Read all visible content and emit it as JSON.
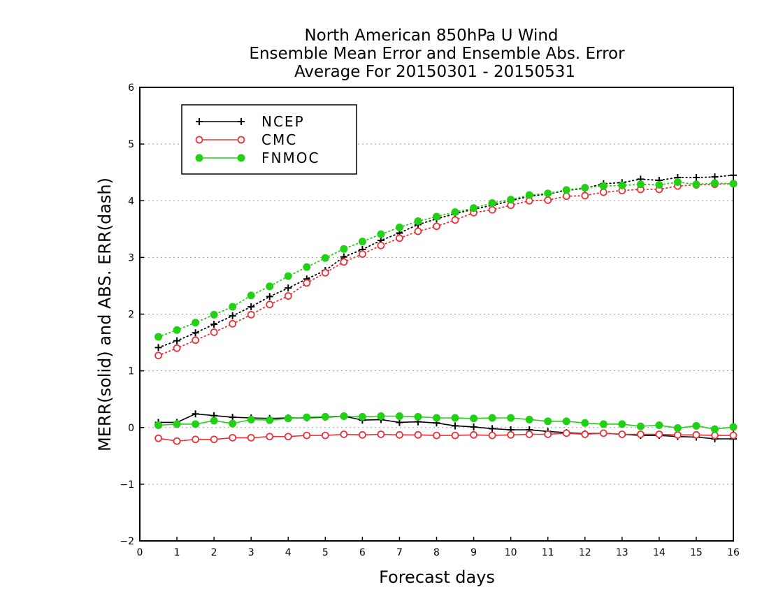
{
  "chart_data": {
    "type": "line",
    "title": [
      "North American 850hPa U Wind",
      "Ensemble Mean Error and Ensemble Abs. Error",
      "Average For 20150301 - 20150531"
    ],
    "xlabel": "Forecast days",
    "ylabel": "MERR(solid) and ABS. ERR(dash)",
    "xlim": [
      0,
      16
    ],
    "ylim": [
      -2,
      6
    ],
    "xticks": [
      0,
      1,
      2,
      3,
      4,
      5,
      6,
      7,
      8,
      9,
      10,
      11,
      12,
      13,
      14,
      15,
      16
    ],
    "yticks": [
      -2,
      -1,
      0,
      1,
      2,
      3,
      4,
      5,
      6
    ],
    "xtick_labels": [
      "0",
      "1",
      "2",
      "3",
      "4",
      "5",
      "6",
      "7",
      "8",
      "9",
      "10",
      "11",
      "12",
      "13",
      "14",
      "15",
      "16"
    ],
    "ytick_labels": [
      "−2",
      "−1",
      "0",
      "1",
      "2",
      "3",
      "4",
      "5",
      "6"
    ],
    "grid": "horizontal dotted",
    "legend_position": "top-left",
    "x": [
      0.5,
      1,
      1.5,
      2,
      2.5,
      3,
      3.5,
      4,
      4.5,
      5,
      5.5,
      6,
      6.5,
      7,
      7.5,
      8,
      8.5,
      9,
      9.5,
      10,
      10.5,
      11,
      11.5,
      12,
      12.5,
      13,
      13.5,
      14,
      14.5,
      15,
      15.5,
      16
    ],
    "series": [
      {
        "name": "NCEP",
        "color": "#000000",
        "marker": "plus",
        "merr": [
          0.09,
          0.09,
          0.24,
          0.21,
          0.18,
          0.17,
          0.16,
          0.17,
          0.17,
          0.18,
          0.2,
          0.13,
          0.14,
          0.09,
          0.1,
          0.08,
          0.03,
          0.01,
          -0.02,
          -0.04,
          -0.04,
          -0.07,
          -0.09,
          -0.11,
          -0.1,
          -0.12,
          -0.14,
          -0.14,
          -0.16,
          -0.17,
          -0.2,
          -0.2
        ],
        "abs_err": [
          1.41,
          1.53,
          1.67,
          1.82,
          1.97,
          2.13,
          2.31,
          2.46,
          2.62,
          2.77,
          3.01,
          3.14,
          3.3,
          3.43,
          3.58,
          3.68,
          3.77,
          3.85,
          3.92,
          4.0,
          4.08,
          4.12,
          4.18,
          4.22,
          4.3,
          4.32,
          4.38,
          4.36,
          4.41,
          4.41,
          4.42,
          4.45
        ]
      },
      {
        "name": "CMC",
        "color": "#e8333a",
        "marker": "open-circle",
        "merr": [
          -0.19,
          -0.24,
          -0.21,
          -0.21,
          -0.18,
          -0.18,
          -0.16,
          -0.16,
          -0.14,
          -0.14,
          -0.12,
          -0.13,
          -0.12,
          -0.13,
          -0.13,
          -0.14,
          -0.14,
          -0.13,
          -0.14,
          -0.13,
          -0.12,
          -0.12,
          -0.1,
          -0.12,
          -0.1,
          -0.12,
          -0.12,
          -0.12,
          -0.13,
          -0.13,
          -0.14,
          -0.14
        ],
        "abs_err": [
          1.27,
          1.4,
          1.54,
          1.68,
          1.83,
          1.99,
          2.17,
          2.32,
          2.55,
          2.73,
          2.92,
          3.06,
          3.21,
          3.34,
          3.46,
          3.55,
          3.66,
          3.79,
          3.84,
          3.92,
          4.0,
          4.01,
          4.08,
          4.09,
          4.15,
          4.18,
          4.2,
          4.2,
          4.26,
          4.28,
          4.29,
          4.3
        ]
      },
      {
        "name": "FNMOC",
        "color": "#22d016",
        "marker": "filled-circle",
        "merr": [
          0.04,
          0.06,
          0.06,
          0.12,
          0.07,
          0.14,
          0.13,
          0.16,
          0.18,
          0.19,
          0.2,
          0.19,
          0.2,
          0.2,
          0.19,
          0.17,
          0.17,
          0.16,
          0.17,
          0.17,
          0.14,
          0.11,
          0.11,
          0.08,
          0.06,
          0.06,
          0.02,
          0.04,
          -0.01,
          0.03,
          -0.03,
          0.01
        ],
        "abs_err": [
          1.6,
          1.72,
          1.85,
          1.99,
          2.13,
          2.33,
          2.49,
          2.67,
          2.83,
          2.99,
          3.15,
          3.28,
          3.41,
          3.53,
          3.64,
          3.72,
          3.8,
          3.87,
          3.96,
          4.02,
          4.1,
          4.13,
          4.19,
          4.23,
          4.26,
          4.27,
          4.29,
          4.28,
          4.33,
          4.29,
          4.31,
          4.3
        ]
      }
    ]
  }
}
